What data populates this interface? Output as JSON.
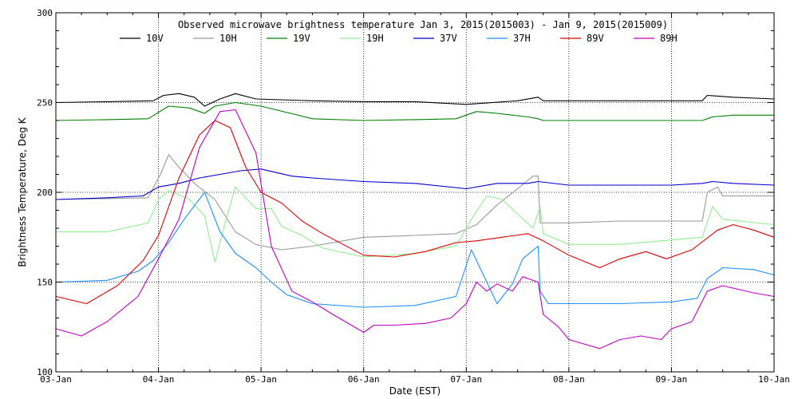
{
  "chart_data": {
    "type": "line",
    "title": "Observed microwave brightness temperature Jan  3, 2015(2015003) - Jan  9, 2015(2015009)",
    "xlabel": "Date (EST)",
    "ylabel": "Brightness Temperature, Deg K",
    "xlim": [
      0,
      7
    ],
    "ylim": [
      100,
      300
    ],
    "x_ticks": [
      {
        "value": 0,
        "label": "03-Jan"
      },
      {
        "value": 1,
        "label": "04-Jan"
      },
      {
        "value": 2,
        "label": "05-Jan"
      },
      {
        "value": 3,
        "label": "06-Jan"
      },
      {
        "value": 4,
        "label": "07-Jan"
      },
      {
        "value": 5,
        "label": "08-Jan"
      },
      {
        "value": 6,
        "label": "09-Jan"
      },
      {
        "value": 7,
        "label": "10-Jan"
      }
    ],
    "y_ticks": [
      {
        "value": 100,
        "label": "100"
      },
      {
        "value": 150,
        "label": "150"
      },
      {
        "value": 200,
        "label": "200"
      },
      {
        "value": 250,
        "label": "250"
      },
      {
        "value": 300,
        "label": "300"
      }
    ],
    "grid": "dotted",
    "legend_position": "top",
    "series": [
      {
        "name": "10V",
        "color": "#000000",
        "points": [
          [
            0,
            250
          ],
          [
            0.5,
            250.5
          ],
          [
            0.95,
            251
          ],
          [
            1.05,
            254
          ],
          [
            1.2,
            255
          ],
          [
            1.35,
            253
          ],
          [
            1.45,
            248
          ],
          [
            1.6,
            252
          ],
          [
            1.75,
            255
          ],
          [
            1.95,
            252
          ],
          [
            2.5,
            251
          ],
          [
            3.0,
            250.5
          ],
          [
            3.5,
            250.5
          ],
          [
            4.0,
            249
          ],
          [
            4.5,
            251
          ],
          [
            4.7,
            253
          ],
          [
            4.75,
            251
          ],
          [
            5.0,
            251
          ],
          [
            5.5,
            251
          ],
          [
            6.0,
            251
          ],
          [
            6.3,
            251
          ],
          [
            6.35,
            254
          ],
          [
            6.6,
            253
          ],
          [
            7.0,
            252
          ]
        ]
      },
      {
        "name": "10H",
        "color": "#999999",
        "points": [
          [
            0,
            196
          ],
          [
            0.5,
            196.5
          ],
          [
            0.9,
            197
          ],
          [
            1.02,
            210
          ],
          [
            1.1,
            221
          ],
          [
            1.2,
            214
          ],
          [
            1.35,
            205
          ],
          [
            1.55,
            196
          ],
          [
            1.75,
            178
          ],
          [
            1.95,
            171
          ],
          [
            2.2,
            168
          ],
          [
            2.5,
            170
          ],
          [
            2.8,
            173
          ],
          [
            3.0,
            175
          ],
          [
            3.5,
            176
          ],
          [
            3.9,
            177
          ],
          [
            4.1,
            182
          ],
          [
            4.3,
            193
          ],
          [
            4.5,
            202
          ],
          [
            4.65,
            209
          ],
          [
            4.7,
            209
          ],
          [
            4.72,
            183
          ],
          [
            5.0,
            183
          ],
          [
            5.5,
            184
          ],
          [
            5.9,
            184
          ],
          [
            6.3,
            184
          ],
          [
            6.35,
            200
          ],
          [
            6.45,
            203
          ],
          [
            6.5,
            198
          ],
          [
            7.0,
            198
          ]
        ]
      },
      {
        "name": "19V",
        "color": "#008000",
        "points": [
          [
            0,
            240
          ],
          [
            0.5,
            240.5
          ],
          [
            0.9,
            241
          ],
          [
            1.1,
            248
          ],
          [
            1.3,
            247
          ],
          [
            1.45,
            244
          ],
          [
            1.55,
            248
          ],
          [
            1.75,
            250
          ],
          [
            2.0,
            248
          ],
          [
            2.5,
            241
          ],
          [
            3.0,
            240
          ],
          [
            3.5,
            240.5
          ],
          [
            3.9,
            241
          ],
          [
            4.1,
            245
          ],
          [
            4.3,
            244
          ],
          [
            4.6,
            242
          ],
          [
            4.7,
            241
          ],
          [
            4.75,
            240
          ],
          [
            5.0,
            240
          ],
          [
            5.5,
            240
          ],
          [
            6.0,
            240
          ],
          [
            6.3,
            240
          ],
          [
            6.4,
            242
          ],
          [
            6.6,
            243
          ],
          [
            7.0,
            243
          ]
        ]
      },
      {
        "name": "19H",
        "color": "#90ee90",
        "points": [
          [
            0,
            178
          ],
          [
            0.5,
            178
          ],
          [
            0.9,
            183
          ],
          [
            1.0,
            196
          ],
          [
            1.1,
            201
          ],
          [
            1.3,
            196
          ],
          [
            1.45,
            187
          ],
          [
            1.55,
            161
          ],
          [
            1.65,
            183
          ],
          [
            1.75,
            203
          ],
          [
            1.95,
            191
          ],
          [
            2.1,
            191
          ],
          [
            2.2,
            181
          ],
          [
            2.4,
            176
          ],
          [
            2.6,
            169
          ],
          [
            3.0,
            164
          ],
          [
            3.5,
            166
          ],
          [
            3.9,
            170
          ],
          [
            4.05,
            185
          ],
          [
            4.2,
            198
          ],
          [
            4.35,
            196
          ],
          [
            4.5,
            188
          ],
          [
            4.65,
            180
          ],
          [
            4.72,
            192
          ],
          [
            4.75,
            177
          ],
          [
            5.0,
            171
          ],
          [
            5.5,
            171
          ],
          [
            5.9,
            173
          ],
          [
            6.3,
            175
          ],
          [
            6.4,
            192
          ],
          [
            6.5,
            185
          ],
          [
            7.0,
            182
          ]
        ]
      },
      {
        "name": "37V",
        "color": "#0000cd",
        "points": [
          [
            0,
            196
          ],
          [
            0.5,
            197
          ],
          [
            0.85,
            198
          ],
          [
            1.0,
            203
          ],
          [
            1.2,
            205
          ],
          [
            1.4,
            208
          ],
          [
            1.6,
            210
          ],
          [
            1.8,
            212
          ],
          [
            2.0,
            213
          ],
          [
            2.3,
            209
          ],
          [
            2.5,
            208
          ],
          [
            3.0,
            206
          ],
          [
            3.5,
            205
          ],
          [
            4.0,
            202
          ],
          [
            4.3,
            205
          ],
          [
            4.6,
            205
          ],
          [
            4.7,
            206
          ],
          [
            5.0,
            204
          ],
          [
            5.5,
            204
          ],
          [
            6.0,
            204
          ],
          [
            6.3,
            205
          ],
          [
            6.4,
            206
          ],
          [
            6.6,
            205
          ],
          [
            7.0,
            204
          ]
        ]
      },
      {
        "name": "37H",
        "color": "#1e90ff",
        "points": [
          [
            0,
            150
          ],
          [
            0.5,
            151
          ],
          [
            0.8,
            156
          ],
          [
            0.95,
            162
          ],
          [
            1.1,
            172
          ],
          [
            1.25,
            185
          ],
          [
            1.45,
            200
          ],
          [
            1.6,
            178
          ],
          [
            1.75,
            166
          ],
          [
            1.95,
            158
          ],
          [
            2.1,
            150
          ],
          [
            2.25,
            143
          ],
          [
            2.5,
            138
          ],
          [
            3.0,
            136
          ],
          [
            3.5,
            137
          ],
          [
            3.9,
            142
          ],
          [
            4.05,
            168
          ],
          [
            4.2,
            150
          ],
          [
            4.3,
            138
          ],
          [
            4.45,
            149
          ],
          [
            4.55,
            163
          ],
          [
            4.7,
            170
          ],
          [
            4.72,
            145
          ],
          [
            4.8,
            138
          ],
          [
            5.0,
            138
          ],
          [
            5.5,
            138
          ],
          [
            6.0,
            139
          ],
          [
            6.25,
            141
          ],
          [
            6.35,
            152
          ],
          [
            6.5,
            158
          ],
          [
            6.8,
            157
          ],
          [
            7.0,
            154
          ]
        ]
      },
      {
        "name": "89V",
        "color": "#dd0000",
        "points": [
          [
            0,
            142
          ],
          [
            0.3,
            138
          ],
          [
            0.6,
            148
          ],
          [
            0.85,
            162
          ],
          [
            1.0,
            176
          ],
          [
            1.2,
            208
          ],
          [
            1.4,
            232
          ],
          [
            1.55,
            240
          ],
          [
            1.7,
            236
          ],
          [
            1.85,
            214
          ],
          [
            2.0,
            200
          ],
          [
            2.2,
            194
          ],
          [
            2.4,
            184
          ],
          [
            2.6,
            177
          ],
          [
            3.0,
            165
          ],
          [
            3.3,
            164
          ],
          [
            3.6,
            167
          ],
          [
            3.9,
            172
          ],
          [
            4.1,
            173
          ],
          [
            4.35,
            175
          ],
          [
            4.6,
            177
          ],
          [
            4.75,
            173
          ],
          [
            5.0,
            165
          ],
          [
            5.3,
            158
          ],
          [
            5.5,
            163
          ],
          [
            5.75,
            167
          ],
          [
            5.95,
            163
          ],
          [
            6.2,
            168
          ],
          [
            6.45,
            179
          ],
          [
            6.6,
            182
          ],
          [
            6.8,
            179
          ],
          [
            7.0,
            175
          ]
        ]
      },
      {
        "name": "89H",
        "color": "#c000c0",
        "points": [
          [
            0,
            124
          ],
          [
            0.25,
            120
          ],
          [
            0.5,
            128
          ],
          [
            0.8,
            142
          ],
          [
            1.0,
            163
          ],
          [
            1.2,
            185
          ],
          [
            1.4,
            225
          ],
          [
            1.6,
            245
          ],
          [
            1.75,
            246
          ],
          [
            1.95,
            222
          ],
          [
            2.1,
            170
          ],
          [
            2.3,
            145
          ],
          [
            2.5,
            139
          ],
          [
            2.7,
            132
          ],
          [
            3.0,
            122
          ],
          [
            3.1,
            126
          ],
          [
            3.3,
            126
          ],
          [
            3.6,
            127
          ],
          [
            3.85,
            130
          ],
          [
            4.0,
            138
          ],
          [
            4.1,
            150
          ],
          [
            4.2,
            145
          ],
          [
            4.3,
            149
          ],
          [
            4.45,
            145
          ],
          [
            4.55,
            153
          ],
          [
            4.7,
            150
          ],
          [
            4.75,
            132
          ],
          [
            4.9,
            125
          ],
          [
            5.0,
            118
          ],
          [
            5.3,
            113
          ],
          [
            5.5,
            118
          ],
          [
            5.7,
            120
          ],
          [
            5.9,
            118
          ],
          [
            6.0,
            124
          ],
          [
            6.2,
            128
          ],
          [
            6.35,
            145
          ],
          [
            6.5,
            148
          ],
          [
            6.8,
            144
          ],
          [
            7.0,
            142
          ]
        ]
      }
    ]
  }
}
